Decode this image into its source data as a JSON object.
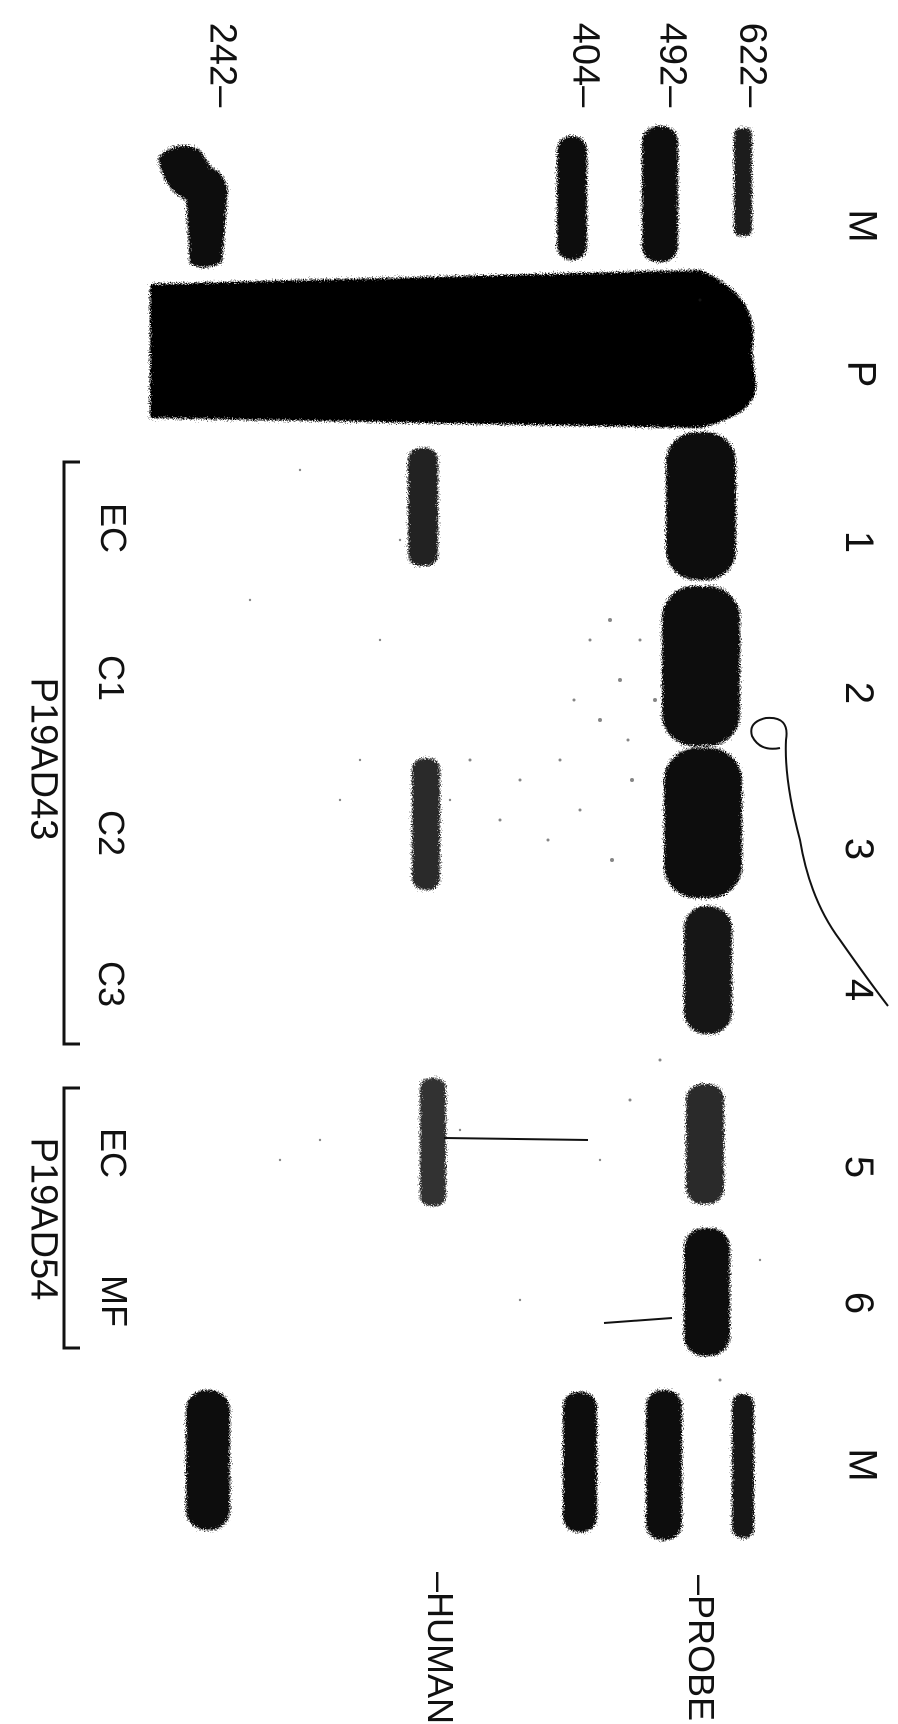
{
  "lanes": [
    "M",
    "P",
    "1",
    "2",
    "3",
    "4",
    "5",
    "6",
    "M"
  ],
  "size_markers": [
    "622–",
    "492–",
    "404–",
    "242–"
  ],
  "band_labels": [
    "–PROBE",
    "–HUMAN"
  ],
  "sample_labels": [
    "EC",
    "C1",
    "C2",
    "C3",
    "EC",
    "MF"
  ],
  "groups": [
    "P19AD43",
    "P19AD54"
  ],
  "colors": {
    "ink": "#111111",
    "background": "#ffffff"
  }
}
